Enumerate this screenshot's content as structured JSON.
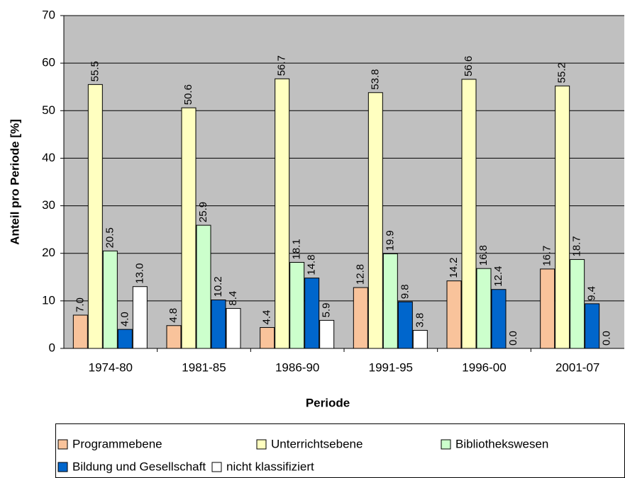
{
  "chart_data": {
    "type": "bar",
    "x_label": "Periode",
    "y_label": "Anteil pro Periode [%]",
    "categories": [
      "1974-80",
      "1981-85",
      "1986-90",
      "1991-95",
      "1996-00",
      "2001-07"
    ],
    "series": [
      {
        "name": "Programmebene",
        "color": "#f9c39b",
        "values": [
          7.0,
          4.8,
          4.4,
          12.8,
          14.2,
          16.7
        ],
        "value_labels": [
          "7.0",
          "4.8",
          "4.4",
          "12.8",
          "14.2",
          "16.7"
        ]
      },
      {
        "name": "Unterrichtsebene",
        "color": "#ffffc0",
        "values": [
          55.5,
          50.6,
          56.7,
          53.8,
          56.6,
          55.2
        ],
        "value_labels": [
          "55.5",
          "50.6",
          "56.7",
          "53.8",
          "56.6",
          "55.2"
        ]
      },
      {
        "name": "Bibliothekswesen",
        "color": "#ccffcc",
        "values": [
          20.5,
          25.9,
          18.1,
          19.9,
          16.8,
          18.7
        ],
        "value_labels": [
          "20.5",
          "25.9",
          "18.1",
          "19.9",
          "16.8",
          "18.7"
        ]
      },
      {
        "name": "Bildung und Gesellschaft",
        "color": "#0066cc",
        "values": [
          4.0,
          10.2,
          14.8,
          9.8,
          12.4,
          9.4
        ],
        "value_labels": [
          "4.0",
          "10.2",
          "14.8",
          "9.8",
          "12.4",
          "9.4"
        ]
      },
      {
        "name": "nicht klassifiziert",
        "color": "#ffffff",
        "values": [
          13.0,
          8.4,
          5.9,
          3.8,
          0.0,
          0.0
        ],
        "value_labels": [
          "13.0",
          "8.4",
          "5.9",
          "3.8",
          "0.0",
          "0.0"
        ]
      }
    ],
    "ylim": [
      0,
      70
    ],
    "yticks": [
      0,
      10,
      20,
      30,
      40,
      50,
      60,
      70
    ],
    "grid": true,
    "legend": "bottom"
  }
}
